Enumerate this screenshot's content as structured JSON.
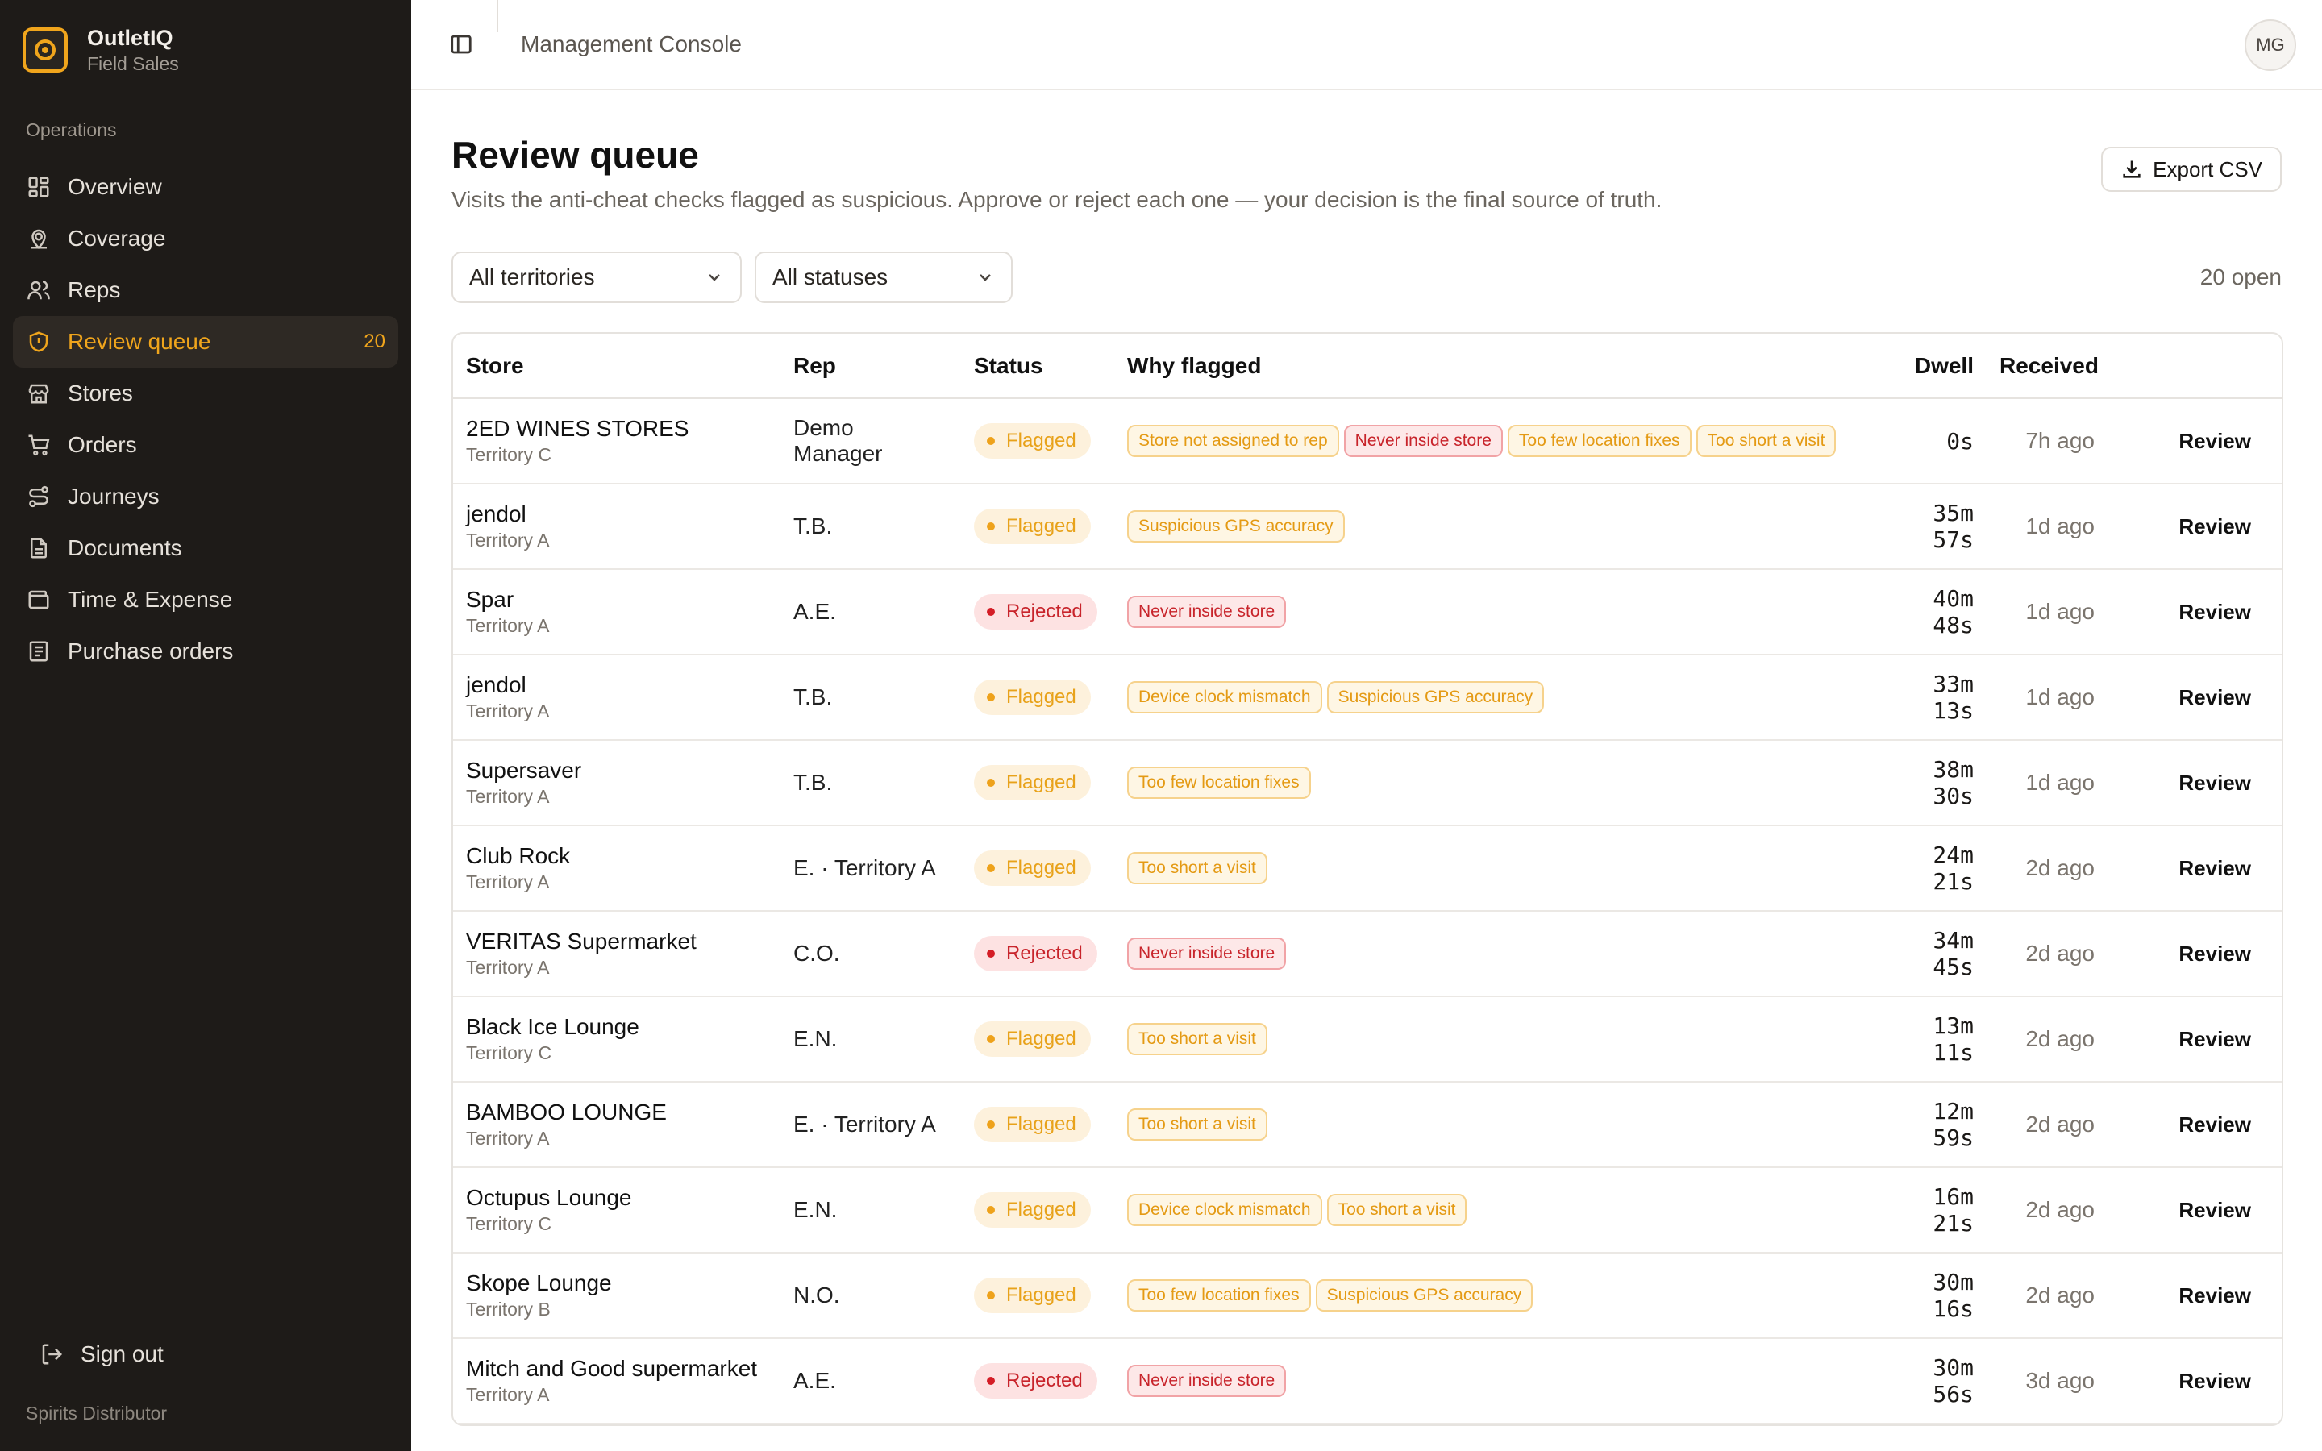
{
  "brand": {
    "name": "OutletIQ",
    "subtitle": "Field Sales"
  },
  "sidebar": {
    "section_label": "Operations",
    "items": [
      {
        "label": "Overview",
        "icon": "grid-icon"
      },
      {
        "label": "Coverage",
        "icon": "map-pin-icon"
      },
      {
        "label": "Reps",
        "icon": "users-icon"
      },
      {
        "label": "Review queue",
        "icon": "shield-alert-icon",
        "badge": "20",
        "active": true
      },
      {
        "label": "Stores",
        "icon": "store-icon"
      },
      {
        "label": "Orders",
        "icon": "cart-icon"
      },
      {
        "label": "Journeys",
        "icon": "route-icon"
      },
      {
        "label": "Documents",
        "icon": "document-icon"
      },
      {
        "label": "Time & Expense",
        "icon": "wallet-icon"
      },
      {
        "label": "Purchase orders",
        "icon": "receipt-icon"
      }
    ],
    "signout": "Sign out",
    "footer": "Spirits Distributor"
  },
  "topbar": {
    "title": "Management Console",
    "avatar": "MG"
  },
  "page": {
    "title": "Review queue",
    "description": "Visits the anti-cheat checks flagged as suspicious. Approve or reject each one — your decision is the final source of truth.",
    "export_label": "Export CSV"
  },
  "filters": {
    "territory": "All territories",
    "status": "All statuses",
    "open_count": "20 open"
  },
  "table": {
    "headers": {
      "store": "Store",
      "rep": "Rep",
      "status": "Status",
      "why": "Why flagged",
      "dwell": "Dwell",
      "received": "Received"
    },
    "action_label": "Review",
    "rows": [
      {
        "store": "2ED WINES STORES",
        "territory": "Territory C",
        "rep": "Demo Manager",
        "status": "Flagged",
        "tags": [
          [
            "Store not assigned to rep",
            "amber"
          ],
          [
            "Never inside store",
            "red"
          ],
          [
            "Too few location fixes",
            "amber"
          ],
          [
            "Too short a visit",
            "amber"
          ]
        ],
        "dwell": "0s",
        "received": "7h ago"
      },
      {
        "store": "jendol",
        "territory": "Territory A",
        "rep": "T.B.",
        "status": "Flagged",
        "tags": [
          [
            "Suspicious GPS accuracy",
            "amber"
          ]
        ],
        "dwell": "35m 57s",
        "received": "1d ago"
      },
      {
        "store": "Spar",
        "territory": "Territory A",
        "rep": "A.E.",
        "status": "Rejected",
        "tags": [
          [
            "Never inside store",
            "red"
          ]
        ],
        "dwell": "40m 48s",
        "received": "1d ago"
      },
      {
        "store": "jendol",
        "territory": "Territory A",
        "rep": "T.B.",
        "status": "Flagged",
        "tags": [
          [
            "Device clock mismatch",
            "amber"
          ],
          [
            "Suspicious GPS accuracy",
            "amber"
          ]
        ],
        "dwell": "33m 13s",
        "received": "1d ago"
      },
      {
        "store": "Supersaver",
        "territory": "Territory A",
        "rep": "T.B.",
        "status": "Flagged",
        "tags": [
          [
            "Too few location fixes",
            "amber"
          ]
        ],
        "dwell": "38m 30s",
        "received": "1d ago"
      },
      {
        "store": "Club Rock",
        "territory": "Territory A",
        "rep": "E. · Territory A",
        "status": "Flagged",
        "tags": [
          [
            "Too short a visit",
            "amber"
          ]
        ],
        "dwell": "24m 21s",
        "received": "2d ago"
      },
      {
        "store": "VERITAS Supermarket",
        "territory": "Territory A",
        "rep": "C.O.",
        "status": "Rejected",
        "tags": [
          [
            "Never inside store",
            "red"
          ]
        ],
        "dwell": "34m 45s",
        "received": "2d ago"
      },
      {
        "store": "Black Ice Lounge",
        "territory": "Territory C",
        "rep": "E.N.",
        "status": "Flagged",
        "tags": [
          [
            "Too short a visit",
            "amber"
          ]
        ],
        "dwell": "13m 11s",
        "received": "2d ago"
      },
      {
        "store": "BAMBOO LOUNGE",
        "territory": "Territory A",
        "rep": "E. · Territory A",
        "status": "Flagged",
        "tags": [
          [
            "Too short a visit",
            "amber"
          ]
        ],
        "dwell": "12m 59s",
        "received": "2d ago"
      },
      {
        "store": "Octupus Lounge",
        "territory": "Territory C",
        "rep": "E.N.",
        "status": "Flagged",
        "tags": [
          [
            "Device clock mismatch",
            "amber"
          ],
          [
            "Too short a visit",
            "amber"
          ]
        ],
        "dwell": "16m 21s",
        "received": "2d ago"
      },
      {
        "store": "Skope Lounge",
        "territory": "Territory B",
        "rep": "N.O.",
        "status": "Flagged",
        "tags": [
          [
            "Too few location fixes",
            "amber"
          ],
          [
            "Suspicious GPS accuracy",
            "amber"
          ]
        ],
        "dwell": "30m 16s",
        "received": "2d ago"
      },
      {
        "store": "Mitch and Good supermarket",
        "territory": "Territory A",
        "rep": "A.E.",
        "status": "Rejected",
        "tags": [
          [
            "Never inside store",
            "red"
          ]
        ],
        "dwell": "30m 56s",
        "received": "3d ago"
      }
    ]
  }
}
